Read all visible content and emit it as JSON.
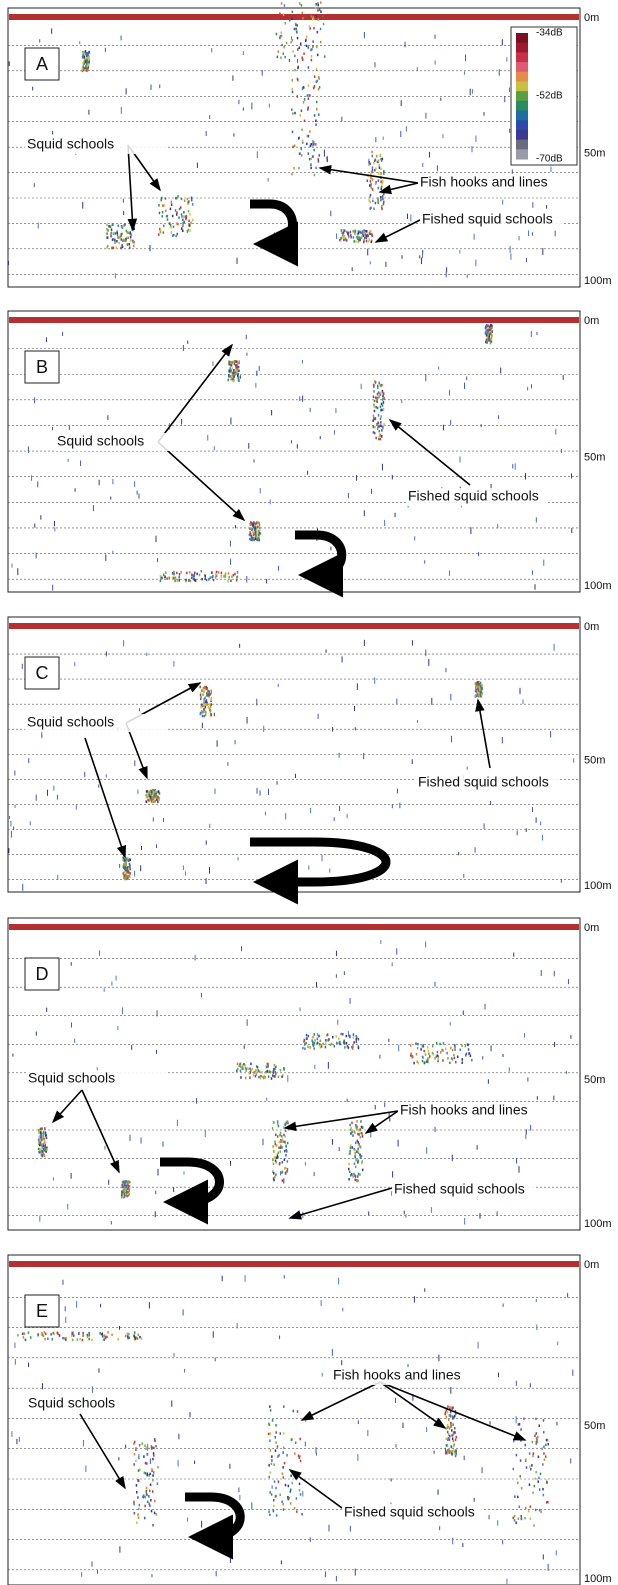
{
  "colorbar": {
    "labels": [
      "-34dB",
      "-52dB",
      "-70dB"
    ]
  },
  "panels": [
    {
      "letter": "A",
      "depth_labels": [
        "0m",
        "50m",
        "100m"
      ],
      "annotations": [
        "Squid schools",
        "Fish hooks and lines",
        "Fished squid schools"
      ]
    },
    {
      "letter": "B",
      "depth_labels": [
        "0m",
        "50m",
        "100m"
      ],
      "annotations": [
        "Squid schools",
        "Fished squid schools"
      ]
    },
    {
      "letter": "C",
      "depth_labels": [
        "0m",
        "50m",
        "100m"
      ],
      "annotations": [
        "Squid schools",
        "Fished squid schools"
      ]
    },
    {
      "letter": "D",
      "depth_labels": [
        "0m",
        "50m",
        "100m"
      ],
      "annotations": [
        "Squid schools",
        "Fish hooks and lines",
        "Fished squid schools"
      ]
    },
    {
      "letter": "E",
      "depth_labels": [
        "0m",
        "50m",
        "100m"
      ],
      "annotations": [
        "Squid schools",
        "Fish hooks and lines",
        "Fished squid schools"
      ]
    }
  ]
}
